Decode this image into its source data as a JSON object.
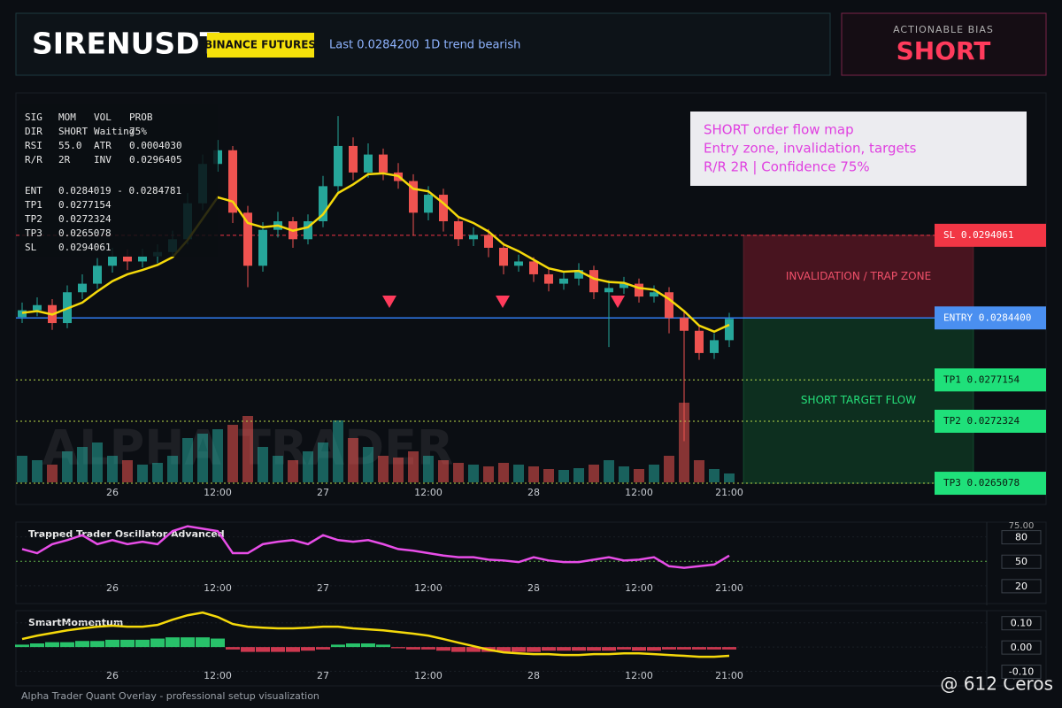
{
  "header": {
    "symbol": "SIRENUSDT",
    "badge": "BINANCE FUTURES",
    "last": "Last 0.0284200",
    "trend": "1D trend bearish"
  },
  "bias": {
    "label": "ACTIONABLE BIAS",
    "value": "SHORT"
  },
  "info_table": {
    "rows": [
      [
        "SIG",
        "MOM",
        "VOL",
        "PROB"
      ],
      [
        "DIR",
        "SHORT",
        "Waiting",
        "75%"
      ],
      [
        "RSI",
        "55.0",
        "ATR",
        "0.0004030"
      ],
      [
        "R/R",
        "2R",
        "INV",
        "0.0296405"
      ],
      [
        "ENT",
        "0.0284019 - 0.0284781"
      ],
      [
        "TP1",
        "0.0277154"
      ],
      [
        "TP2",
        "0.0272324"
      ],
      [
        "TP3",
        "0.0265078"
      ],
      [
        "SL",
        "0.0294061"
      ]
    ]
  },
  "note": {
    "lines": [
      "SHORT order flow map",
      "Entry zone, invalidation, targets",
      "R/R 2R | Confidence 75%"
    ]
  },
  "chart_data": [
    {
      "type": "candlestick",
      "watermark": "ALPHA TRADER",
      "up_color": "#26a69a",
      "down_color": "#ef5350",
      "categories": [
        null,
        null,
        null,
        null,
        null,
        null,
        "26",
        null,
        null,
        null,
        null,
        null,
        null,
        "12:00",
        null,
        null,
        null,
        null,
        null,
        null,
        "27",
        null,
        null,
        null,
        null,
        null,
        null,
        "12:00",
        null,
        null,
        null,
        null,
        null,
        null,
        "28",
        null,
        null,
        null,
        null,
        null,
        null,
        "12:00",
        null,
        null,
        null,
        null,
        null,
        "21:00"
      ],
      "ylim": [
        0.02626,
        0.03107
      ],
      "ohlc": [
        [
          0.02845,
          0.02862,
          0.02838,
          0.02853
        ],
        [
          0.02853,
          0.02868,
          0.02846,
          0.02859
        ],
        [
          0.02859,
          0.02866,
          0.0283,
          0.02838
        ],
        [
          0.02838,
          0.02882,
          0.02832,
          0.02874
        ],
        [
          0.02874,
          0.02895,
          0.02866,
          0.02884
        ],
        [
          0.02884,
          0.02914,
          0.02878,
          0.02905
        ],
        [
          0.02905,
          0.02926,
          0.02897,
          0.02916
        ],
        [
          0.02916,
          0.02924,
          0.029,
          0.0291
        ],
        [
          0.0291,
          0.02925,
          0.02903,
          0.02916
        ],
        [
          0.02916,
          0.0293,
          0.02908,
          0.02921
        ],
        [
          0.02921,
          0.02946,
          0.02914,
          0.02936
        ],
        [
          0.02936,
          0.0299,
          0.0293,
          0.02978
        ],
        [
          0.02978,
          0.03035,
          0.0297,
          0.03024
        ],
        [
          0.03024,
          0.03052,
          0.03015,
          0.0304
        ],
        [
          0.0304,
          0.03045,
          0.02955,
          0.02967
        ],
        [
          0.02967,
          0.02975,
          0.0288,
          0.02905
        ],
        [
          0.02905,
          0.02956,
          0.02898,
          0.02947
        ],
        [
          0.02947,
          0.02968,
          0.02938,
          0.02957
        ],
        [
          0.02957,
          0.02962,
          0.02926,
          0.02936
        ],
        [
          0.02936,
          0.02965,
          0.0293,
          0.02957
        ],
        [
          0.02957,
          0.0301,
          0.0295,
          0.02998
        ],
        [
          0.02998,
          0.0308,
          0.0299,
          0.03045
        ],
        [
          0.03045,
          0.03055,
          0.03005,
          0.03014
        ],
        [
          0.03014,
          0.03048,
          0.03008,
          0.03035
        ],
        [
          0.03035,
          0.03042,
          0.03005,
          0.03014
        ],
        [
          0.03014,
          0.03025,
          0.02995,
          0.03004
        ],
        [
          0.03004,
          0.03012,
          0.0294,
          0.02967
        ],
        [
          0.02967,
          0.02998,
          0.02958,
          0.02988
        ],
        [
          0.02988,
          0.02995,
          0.02945,
          0.02957
        ],
        [
          0.02957,
          0.02962,
          0.02928,
          0.02936
        ],
        [
          0.02936,
          0.0295,
          0.02928,
          0.02941
        ],
        [
          0.02941,
          0.02948,
          0.02915,
          0.02926
        ],
        [
          0.02926,
          0.02932,
          0.02895,
          0.02905
        ],
        [
          0.02905,
          0.02918,
          0.02898,
          0.0291
        ],
        [
          0.0291,
          0.02915,
          0.02886,
          0.02895
        ],
        [
          0.02895,
          0.02902,
          0.02875,
          0.02884
        ],
        [
          0.02884,
          0.02898,
          0.02877,
          0.0289
        ],
        [
          0.0289,
          0.02908,
          0.02882,
          0.029
        ],
        [
          0.029,
          0.02905,
          0.02866,
          0.02874
        ],
        [
          0.02874,
          0.02888,
          0.0281,
          0.02879
        ],
        [
          0.02879,
          0.02892,
          0.02872,
          0.02884
        ],
        [
          0.02884,
          0.0289,
          0.02862,
          0.02869
        ],
        [
          0.02869,
          0.02882,
          0.02862,
          0.02874
        ],
        [
          0.02874,
          0.0288,
          0.02826,
          0.02844
        ],
        [
          0.02844,
          0.02852,
          0.027,
          0.02829
        ],
        [
          0.02829,
          0.02836,
          0.02795,
          0.02803
        ],
        [
          0.02803,
          0.02826,
          0.02796,
          0.02818
        ],
        [
          0.02818,
          0.0285,
          0.0281,
          0.02843
        ]
      ],
      "ema": {
        "color": "#f5d90a",
        "values": [
          0.0285,
          0.02852,
          0.02848,
          0.02855,
          0.02862,
          0.02875,
          0.02887,
          0.02895,
          0.029,
          0.02906,
          0.02915,
          0.02935,
          0.0296,
          0.02985,
          0.0298,
          0.02955,
          0.0295,
          0.02952,
          0.02946,
          0.0295,
          0.02965,
          0.0299,
          0.03,
          0.03012,
          0.03013,
          0.0301,
          0.02995,
          0.02992,
          0.02978,
          0.02962,
          0.02955,
          0.02945,
          0.0293,
          0.02922,
          0.02912,
          0.02902,
          0.02898,
          0.02899,
          0.0289,
          0.02886,
          0.02885,
          0.02879,
          0.02877,
          0.02866,
          0.02852,
          0.02835,
          0.02828,
          0.02836
        ]
      },
      "volume": {
        "ylim": [
          0,
          100
        ],
        "values": [
          30,
          25,
          20,
          35,
          40,
          45,
          30,
          25,
          20,
          22,
          30,
          50,
          55,
          60,
          65,
          75,
          40,
          30,
          25,
          35,
          45,
          70,
          50,
          40,
          30,
          28,
          35,
          30,
          25,
          22,
          20,
          18,
          22,
          20,
          18,
          15,
          14,
          16,
          20,
          25,
          18,
          15,
          20,
          30,
          90,
          25,
          15,
          10
        ]
      },
      "levels": [
        {
          "label": "SL 0.0294061",
          "value": 0.0294061,
          "color": "#f23645",
          "text_color": "#ffffff",
          "line_color": "#f23645",
          "dash": "4 3"
        },
        {
          "label": "ENTRY 0.0284400",
          "value": 0.02844,
          "color": "#4a8ff0",
          "text_color": "#ffffff",
          "line_color": "#2f7bf0",
          "dash": "0"
        },
        {
          "label": "TP1 0.0277154",
          "value": 0.0277154,
          "color": "#1fe07a",
          "text_color": "#0b1a10",
          "line_color": "#b8d84a",
          "dash": "2 3"
        },
        {
          "label": "TP2 0.0272324",
          "value": 0.0272324,
          "color": "#1fe07a",
          "text_color": "#0b1a10",
          "line_color": "#b8d84a",
          "dash": "2 3"
        },
        {
          "label": "TP3 0.0265078",
          "value": 0.0265078,
          "color": "#1fe07a",
          "text_color": "#0b1a10",
          "line_color": "#b8d84a",
          "dash": "2 3"
        }
      ],
      "zones": [
        {
          "label": "INVALIDATION / TRAP ZONE",
          "range": [
            0.0294061,
            0.02844
          ],
          "color": "#7a1a2a",
          "text_color": "#f0506a"
        },
        {
          "label": "SHORT TARGET FLOW",
          "range": [
            0.02844,
            0.0265078
          ],
          "color": "#0f4a2a",
          "text_color": "#25e07a"
        }
      ]
    },
    {
      "type": "line",
      "title": "Trapped Trader Oscillator Advanced",
      "color": "#e84de8",
      "top_label": "75.00",
      "ylim": [
        -4,
        98
      ],
      "yticks": [
        80,
        50,
        20
      ],
      "values": [
        65,
        60,
        71,
        76,
        82,
        71,
        76,
        71,
        74,
        71,
        87,
        93,
        90,
        87,
        60,
        60,
        71,
        74,
        76,
        71,
        82,
        76,
        74,
        76,
        71,
        65,
        63,
        60,
        57,
        55,
        55,
        52,
        51,
        49,
        55,
        51,
        49,
        49,
        52,
        55,
        51,
        52,
        55,
        44,
        42,
        44,
        46,
        57
      ]
    },
    {
      "type": "momentum",
      "title": "SmartMomentum",
      "color": "#f5d90a",
      "ylim": [
        -0.16,
        0.15
      ],
      "yticks": [
        {
          "value": 0.1,
          "label": "0.10"
        },
        {
          "value": 0,
          "label": "0.00"
        },
        {
          "value": -0.1,
          "label": "-0.10"
        }
      ],
      "values": [
        0.033,
        0.047,
        0.058,
        0.069,
        0.077,
        0.084,
        0.088,
        0.084,
        0.084,
        0.091,
        0.113,
        0.131,
        0.142,
        0.124,
        0.095,
        0.084,
        0.08,
        0.077,
        0.077,
        0.08,
        0.084,
        0.084,
        0.077,
        0.073,
        0.069,
        0.062,
        0.055,
        0.047,
        0.033,
        0.018,
        0.004,
        -0.011,
        -0.022,
        -0.026,
        -0.029,
        -0.029,
        -0.033,
        -0.033,
        -0.029,
        -0.029,
        -0.026,
        -0.026,
        -0.029,
        -0.033,
        -0.036,
        -0.04,
        -0.04,
        -0.036
      ],
      "histogram": [
        0.01,
        0.015,
        0.02,
        0.02,
        0.025,
        0.025,
        0.03,
        0.03,
        0.03,
        0.035,
        0.04,
        0.04,
        0.04,
        0.035,
        -0.01,
        -0.02,
        -0.02,
        -0.02,
        -0.02,
        -0.015,
        -0.01,
        0.01,
        0.015,
        0.015,
        0.01,
        -0.005,
        -0.01,
        -0.01,
        -0.015,
        -0.02,
        -0.02,
        -0.02,
        -0.02,
        -0.02,
        -0.02,
        -0.015,
        -0.015,
        -0.015,
        -0.015,
        -0.015,
        -0.01,
        -0.015,
        -0.015,
        -0.01,
        -0.01,
        -0.01,
        -0.01,
        -0.01
      ],
      "up_color": "#2ee07a",
      "down_color": "#f0405a"
    }
  ],
  "footer": {
    "caption": "Alpha Trader Quant Overlay - professional setup visualization",
    "corner": "@ 612 Ceros"
  }
}
